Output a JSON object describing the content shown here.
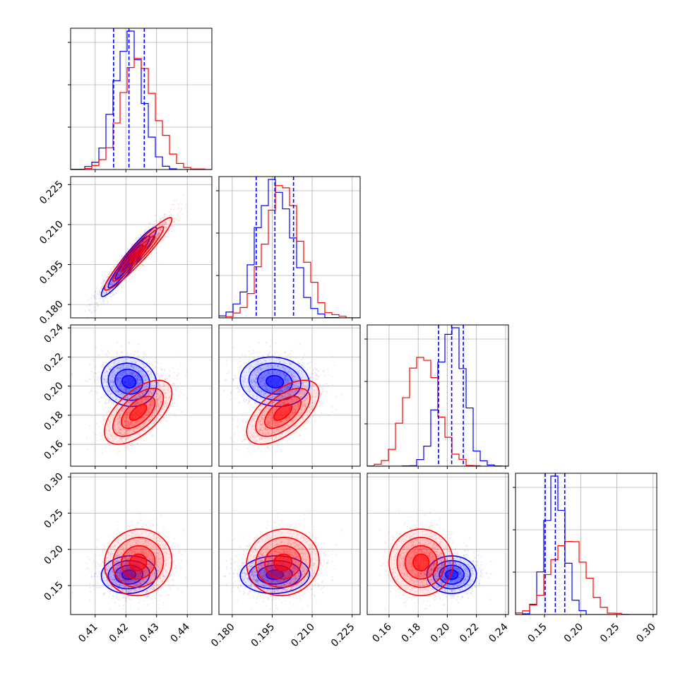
{
  "colors": {
    "blue": "#0000ff",
    "red": "#ff0000",
    "grid": "#b0b0b0",
    "axis": "#000000"
  },
  "chart_data": {
    "type": "corner",
    "grid": true,
    "params": [
      {
        "range": [
          0.402,
          0.448
        ],
        "ticks": [
          "0.41",
          "0.42",
          "0.43",
          "0.44"
        ],
        "tick_values": [
          0.41,
          0.42,
          0.43,
          0.44
        ]
      },
      {
        "range": [
          0.175,
          0.228
        ],
        "ticks": [
          "0.180",
          "0.195",
          "0.210",
          "0.225"
        ],
        "tick_values": [
          0.18,
          0.195,
          0.21,
          0.225
        ]
      },
      {
        "range": [
          0.145,
          0.242
        ],
        "ticks": [
          "0.16",
          "0.18",
          "0.20",
          "0.22",
          "0.24"
        ],
        "tick_values": [
          0.16,
          0.18,
          0.2,
          0.22,
          0.24
        ]
      },
      {
        "range": [
          0.11,
          0.305
        ],
        "ticks": [
          "0.15",
          "0.20",
          "0.25",
          "0.30"
        ],
        "tick_values": [
          0.15,
          0.2,
          0.25,
          0.3
        ]
      }
    ],
    "series": [
      {
        "color": "blue",
        "mean": [
          0.421,
          0.196,
          0.203,
          0.165
        ],
        "sd": [
          0.0045,
          0.0065,
          0.0085,
          0.013
        ],
        "quantiles": [
          [
            0.416,
            0.421,
            0.426
          ],
          [
            0.189,
            0.196,
            0.203
          ],
          [
            0.194,
            0.203,
            0.211
          ],
          [
            0.151,
            0.165,
            0.178
          ]
        ],
        "correlation": [
          [
            1,
            0.95,
            -0.1,
            0.05
          ],
          [
            0.95,
            1,
            -0.1,
            0.05
          ],
          [
            -0.1,
            -0.1,
            1,
            0
          ],
          [
            0.05,
            0.05,
            0,
            1
          ]
        ]
      },
      {
        "color": "red",
        "mean": [
          0.424,
          0.199,
          0.182,
          0.182
        ],
        "sd": [
          0.0055,
          0.0068,
          0.011,
          0.023
        ],
        "correlation": [
          [
            1,
            0.95,
            0.6,
            0.05
          ],
          [
            0.95,
            1,
            0.6,
            0.05
          ],
          [
            0.6,
            0.6,
            1,
            0
          ],
          [
            0.05,
            0.05,
            0,
            1
          ]
        ]
      }
    ]
  }
}
